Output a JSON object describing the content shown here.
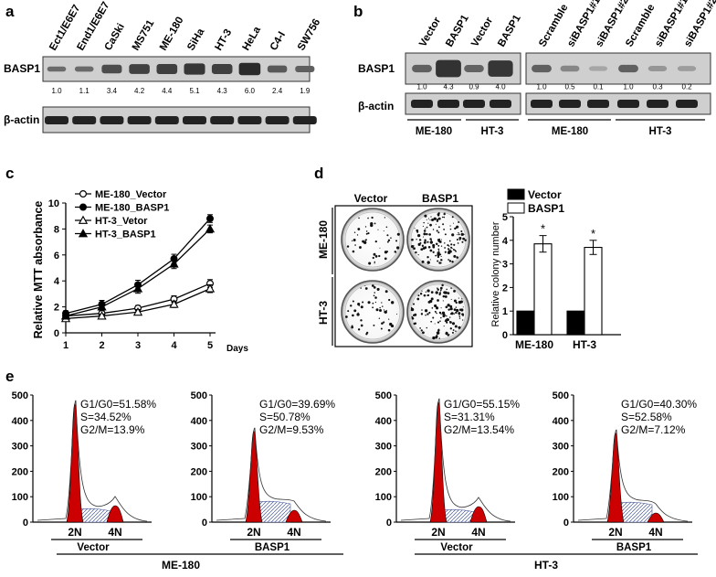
{
  "panel_a": {
    "label": "a",
    "lanes": [
      "Ect1/E6E7",
      "End1/E6E7",
      "CaSki",
      "MS751",
      "ME-180",
      "SiHa",
      "HT-3",
      "HeLa",
      "C4-I",
      "SW756"
    ],
    "row1_label": "BASP1",
    "row2_label": "β-actin",
    "values": [
      "1.0",
      "1.1",
      "3.4",
      "4.2",
      "4.4",
      "5.1",
      "4.3",
      "6.0",
      "2.4",
      "1.9"
    ]
  },
  "panel_b": {
    "label": "b",
    "left_lanes": [
      "Vector",
      "BASP1",
      "Vector",
      "BASP1"
    ],
    "right_lanes": [
      "Scramble",
      "siBASP1#1",
      "siBASP1#2",
      "Scramble",
      "siBASP1#1",
      "siBASP1#2"
    ],
    "row1_label": "BASP1",
    "row2_label": "β-actin",
    "left_values": [
      "1.0",
      "4.3",
      "0.9",
      "4.0"
    ],
    "right_values": [
      "1.0",
      "0.5",
      "0.1",
      "1.0",
      "0.3",
      "0.2"
    ],
    "groups": [
      "ME-180",
      "HT-3",
      "ME-180",
      "HT-3"
    ]
  },
  "panel_c": {
    "label": "c",
    "legend": [
      "ME-180_Vector",
      "ME-180_BASP1",
      "HT-3_Vetor",
      "HT-3_BASP1"
    ],
    "days_label": "Days"
  },
  "panel_d": {
    "label": "d",
    "col_headers": [
      "Vector",
      "BASP1"
    ],
    "row_labels": [
      "ME-180",
      "HT-3"
    ],
    "legend": [
      "Vector",
      "BASP1"
    ],
    "asterisk": "*"
  },
  "panel_e": {
    "label": "e",
    "histograms": [
      {
        "g1": "G1/G0=51.58%",
        "s": "S=34.52%",
        "g2": "G2/M=13.9%",
        "condition": "Vector"
      },
      {
        "g1": "G1/G0=39.69%",
        "s": "S=50.78%",
        "g2": "G2/M=9.53%",
        "condition": "BASP1"
      },
      {
        "g1": "G1/G0=55.15%",
        "s": "S=31.31%",
        "g2": "G2/M=13.54%",
        "condition": "Vector"
      },
      {
        "g1": "G1/G0=40.30%",
        "s": "S=52.58%",
        "g2": "G2/M=7.12%",
        "condition": "BASP1"
      }
    ],
    "n2": "2N",
    "n4": "4N",
    "cell_lines": [
      "ME-180",
      "HT-3"
    ]
  },
  "chart_data": [
    {
      "type": "line",
      "title": "",
      "xlabel": "Days",
      "ylabel": "Relative MTT absorbance",
      "x": [
        1,
        2,
        3,
        4,
        5
      ],
      "xlim": [
        1,
        5
      ],
      "ylim": [
        0,
        10
      ],
      "yticks": [
        0,
        2,
        4,
        6,
        8,
        10
      ],
      "series": [
        {
          "name": "ME-180_Vector",
          "values": [
            1.3,
            1.5,
            1.9,
            2.6,
            3.8
          ],
          "errors": [
            0.15,
            0.15,
            0.2,
            0.25,
            0.3
          ]
        },
        {
          "name": "ME-180_BASP1",
          "values": [
            1.5,
            2.2,
            3.7,
            5.7,
            8.8
          ],
          "errors": [
            0.2,
            0.3,
            0.35,
            0.35,
            0.3
          ]
        },
        {
          "name": "HT-3_Vetor",
          "values": [
            1.1,
            1.3,
            1.6,
            2.2,
            3.4
          ],
          "errors": [
            0.15,
            0.15,
            0.2,
            0.25,
            0.3
          ]
        },
        {
          "name": "HT-3_BASP1",
          "values": [
            1.3,
            2.0,
            3.4,
            5.3,
            8.0
          ],
          "errors": [
            0.2,
            0.3,
            0.35,
            0.35,
            0.3
          ]
        }
      ]
    },
    {
      "type": "bar",
      "title": "",
      "xlabel": "",
      "ylabel": "Relative colony number",
      "categories": [
        "ME-180",
        "HT-3"
      ],
      "ylim": [
        0,
        5
      ],
      "yticks": [
        0,
        1,
        2,
        3,
        4,
        5
      ],
      "series": [
        {
          "name": "Vector",
          "values": [
            1.0,
            1.0
          ],
          "errors": [
            0,
            0
          ]
        },
        {
          "name": "BASP1",
          "values": [
            3.85,
            3.7
          ],
          "errors": [
            0.35,
            0.3
          ]
        }
      ]
    }
  ]
}
